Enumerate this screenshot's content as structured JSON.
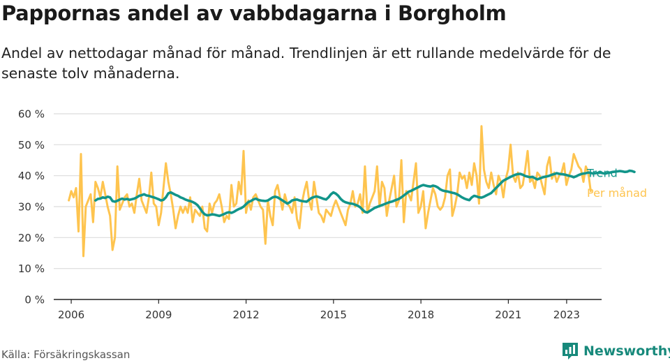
{
  "title": "Pappornas andel av vabbdagarna i Borgholm",
  "subtitle": "Andel av nettodagar månad för månad. Trendlinjen är ett rullande medelvärde för de senaste tolv månaderna.",
  "source": "Källa: Försäkringskassan",
  "brand": "Newsworthy",
  "colors": {
    "trend": "#12958a",
    "monthly": "#fec44f",
    "brand": "#17897b"
  },
  "chart_data": {
    "type": "line",
    "title": "Pappornas andel av vabbdagarna i Borgholm",
    "xlabel": "",
    "ylabel": "",
    "ylim": [
      0,
      60
    ],
    "y_ticks": [
      0,
      10,
      20,
      30,
      40,
      50,
      60
    ],
    "y_tick_labels": [
      "0 %",
      "10 %",
      "20 %",
      "30 %",
      "40 %",
      "50 %",
      "60 %"
    ],
    "x_ticks": [
      2006,
      2009,
      2012,
      2015,
      2018,
      2021,
      2023
    ],
    "x_tick_labels": [
      "2006",
      "2009",
      "2012",
      "2015",
      "2018",
      "2021",
      "2023"
    ],
    "xlim": [
      2005.4,
      2024.2
    ],
    "grid": true,
    "legend": "inline-right",
    "series": [
      {
        "name": "Per månad",
        "color": "#fec44f",
        "x_start": 2005.917,
        "x_step": 0.0833,
        "values": [
          32,
          35,
          33,
          36,
          22,
          47,
          14,
          30,
          32,
          34,
          25,
          38,
          36,
          33,
          38,
          34,
          30,
          27,
          16,
          20,
          43,
          29,
          31,
          33,
          34,
          30,
          31,
          28,
          34,
          39,
          32,
          30,
          28,
          33,
          41,
          31,
          30,
          24,
          28,
          36,
          44,
          38,
          34,
          29,
          23,
          27,
          30,
          28,
          30,
          28,
          33,
          25,
          29,
          28,
          27,
          30,
          23,
          22,
          31,
          28,
          31,
          32,
          34,
          30,
          25,
          27,
          26,
          37,
          30,
          31,
          38,
          34,
          48,
          28,
          32,
          29,
          33,
          34,
          32,
          30,
          29,
          18,
          32,
          27,
          24,
          35,
          37,
          33,
          29,
          34,
          31,
          30,
          28,
          33,
          26,
          23,
          31,
          35,
          38,
          32,
          29,
          38,
          33,
          28,
          27,
          25,
          29,
          28,
          27,
          30,
          32,
          30,
          28,
          26,
          24,
          29,
          31,
          35,
          30,
          31,
          34,
          28,
          43,
          28,
          31,
          33,
          35,
          43,
          30,
          38,
          36,
          27,
          32,
          36,
          40,
          30,
          32,
          45,
          25,
          35,
          34,
          32,
          38,
          44,
          28,
          30,
          35,
          23,
          28,
          32,
          36,
          34,
          30,
          29,
          30,
          33,
          40,
          42,
          27,
          30,
          34,
          41,
          39,
          40,
          36,
          41,
          37,
          44,
          40,
          31,
          56,
          42,
          38,
          36,
          41,
          37,
          34,
          40,
          38,
          33,
          39,
          42,
          50,
          40,
          38,
          41,
          36,
          37,
          42,
          48,
          38,
          39,
          36,
          41,
          40,
          37,
          34,
          43,
          46,
          39,
          41,
          38,
          40,
          41,
          44,
          37,
          40,
          42,
          47,
          45,
          43,
          42,
          38,
          43,
          41,
          35
        ]
      },
      {
        "name": "Trend",
        "color": "#12958a",
        "x_start": 2006.833,
        "x_step": 0.0833,
        "values": [
          32,
          32.5,
          32.6,
          33,
          32.8,
          33.2,
          33,
          31.8,
          31.6,
          31.9,
          32.3,
          32.6,
          32.3,
          32.5,
          32.2,
          32.4,
          32.6,
          33,
          33.5,
          33.7,
          34,
          33.6,
          33.5,
          33.2,
          33,
          32.7,
          32.4,
          32,
          32.2,
          33,
          34.3,
          34.6,
          34.2,
          33.8,
          33.5,
          33,
          32.7,
          32.3,
          32,
          31.8,
          31.5,
          31.1,
          30.5,
          29.5,
          28.3,
          27.5,
          27.2,
          27.3,
          27.5,
          27.4,
          27.2,
          27,
          27.3,
          27.6,
          28,
          28.2,
          28,
          28.3,
          28.8,
          29.2,
          29.5,
          30,
          30.8,
          31.5,
          31.8,
          32.3,
          32.6,
          32.2,
          32,
          31.9,
          31.8,
          32,
          32.5,
          33,
          33.2,
          33,
          32.5,
          32,
          31.5,
          31,
          31.4,
          32,
          32.2,
          32.3,
          32,
          31.8,
          31.7,
          31.6,
          32.2,
          32.8,
          33.1,
          33.3,
          33.1,
          32.8,
          32.5,
          32.3,
          33,
          34,
          34.6,
          34.2,
          33.5,
          32.5,
          31.8,
          31.4,
          31.2,
          31,
          30.9,
          30.6,
          30.3,
          29.8,
          29,
          28.3,
          28.1,
          28.6,
          29.1,
          29.6,
          29.9,
          30.2,
          30.5,
          30.8,
          31.1,
          31.4,
          31.6,
          31.9,
          32.2,
          32.5,
          33,
          33.6,
          34.2,
          34.8,
          35.1,
          35.5,
          35.9,
          36.3,
          36.7,
          37,
          36.8,
          36.6,
          36.5,
          36.8,
          36.6,
          36.2,
          35.6,
          35.2,
          35,
          34.9,
          34.7,
          34.5,
          34.3,
          34,
          33.5,
          33,
          32.6,
          32.3,
          32.1,
          33,
          33.5,
          33.3,
          33,
          32.9,
          33.2,
          33.6,
          34,
          34.4,
          35.2,
          36,
          36.8,
          37.6,
          38.4,
          38.8,
          39.2,
          39.6,
          40,
          40.3,
          40.5,
          40.6,
          40.3,
          39.9,
          39.7,
          39.5,
          39.6,
          39.2,
          38.8,
          39.1,
          39.4,
          39.6,
          39.8,
          40,
          40.3,
          40.5,
          40.8,
          40.6,
          40.5,
          40.4,
          40.2,
          40,
          39.8,
          39.5,
          39.8,
          40.2,
          40.5,
          40.7,
          40.8,
          41,
          40.9,
          40.7,
          40.8,
          40.9,
          41,
          40.8,
          40.7,
          40.9,
          41,
          41.2,
          41.3,
          41.4,
          41.5,
          41.4,
          41.2,
          41.3,
          41.6,
          41.5,
          41.2
        ]
      }
    ]
  }
}
